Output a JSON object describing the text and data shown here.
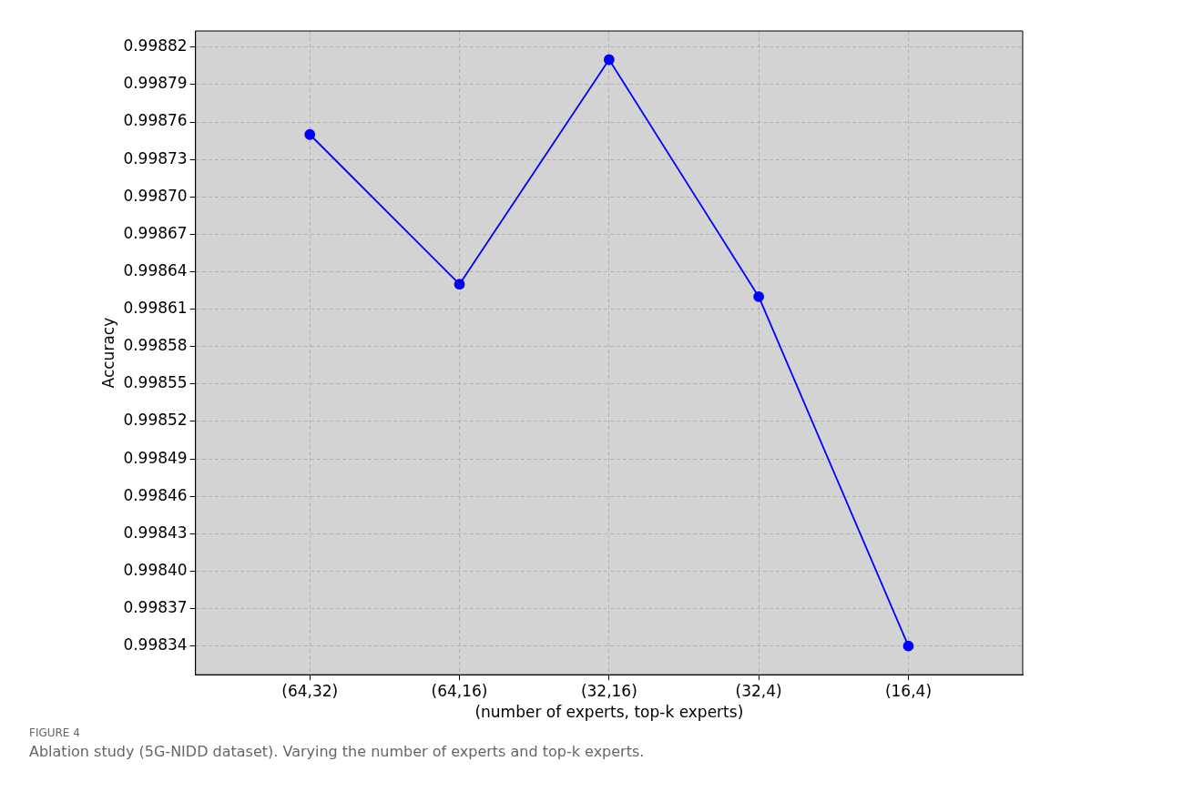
{
  "chart_data": {
    "type": "line",
    "xlabel": "(number of experts, top-k experts)",
    "ylabel": "Accuracy",
    "categories": [
      "(64,32)",
      "(64,16)",
      "(32,16)",
      "(32,4)",
      "(16,4)"
    ],
    "series": [
      {
        "color": "#0000ff",
        "values": [
          0.99875,
          0.99863,
          0.99881,
          0.99862,
          0.99834
        ]
      }
    ],
    "ylim": [
      0.998317,
      0.998833
    ],
    "yticks": [
      {
        "value": 0.99834,
        "label": "0.99834"
      },
      {
        "value": 0.99837,
        "label": "0.99837"
      },
      {
        "value": 0.9984,
        "label": "0.99840"
      },
      {
        "value": 0.99843,
        "label": "0.99843"
      },
      {
        "value": 0.99846,
        "label": "0.99846"
      },
      {
        "value": 0.99849,
        "label": "0.99849"
      },
      {
        "value": 0.99852,
        "label": "0.99852"
      },
      {
        "value": 0.99855,
        "label": "0.99855"
      },
      {
        "value": 0.99858,
        "label": "0.99858"
      },
      {
        "value": 0.99861,
        "label": "0.99861"
      },
      {
        "value": 0.99864,
        "label": "0.99864"
      },
      {
        "value": 0.99867,
        "label": "0.99867"
      },
      {
        "value": 0.9987,
        "label": "0.99870"
      },
      {
        "value": 0.99873,
        "label": "0.99873"
      },
      {
        "value": 0.99876,
        "label": "0.99876"
      },
      {
        "value": 0.99879,
        "label": "0.99879"
      },
      {
        "value": 0.99882,
        "label": "0.99882"
      }
    ],
    "grid": true,
    "legend": false,
    "marker": "circle",
    "line_style": "solid",
    "annotations": [
      "FIGURE 4",
      "Ablation study (5G-NIDD dataset). Varying the number of experts and top-k experts."
    ]
  }
}
